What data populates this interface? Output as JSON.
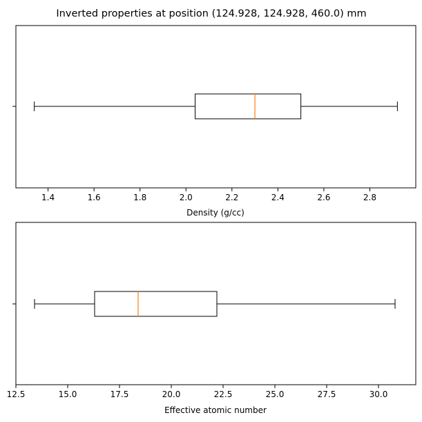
{
  "title": "Inverted properties at position (124.928, 124.928, 460.0) mm",
  "chart_data": [
    {
      "type": "box",
      "orientation": "horizontal",
      "xlabel": "Density (g/cc)",
      "xlim": [
        1.26,
        3.0
      ],
      "xticks": [
        1.4,
        1.6,
        1.8,
        2.0,
        2.2,
        2.4,
        2.6,
        2.8
      ],
      "xtick_labels": [
        "1.4",
        "1.6",
        "1.8",
        "2.0",
        "2.2",
        "2.4",
        "2.6",
        "2.8"
      ],
      "box": {
        "whislo": 1.34,
        "q1": 2.04,
        "med": 2.3,
        "q3": 2.5,
        "whishi": 2.92
      },
      "colors": {
        "box": "#000000",
        "median": "#ff7f0e"
      }
    },
    {
      "type": "box",
      "orientation": "horizontal",
      "xlabel": "Effective atomic number",
      "xlim": [
        12.5,
        31.8
      ],
      "xticks": [
        12.5,
        15.0,
        17.5,
        20.0,
        22.5,
        25.0,
        27.5,
        30.0
      ],
      "xtick_labels": [
        "12.5",
        "15.0",
        "17.5",
        "20.0",
        "22.5",
        "25.0",
        "27.5",
        "30.0"
      ],
      "box": {
        "whislo": 13.4,
        "q1": 16.3,
        "med": 18.4,
        "q3": 22.2,
        "whishi": 30.8
      },
      "colors": {
        "box": "#000000",
        "median": "#ff7f0e"
      }
    }
  ]
}
